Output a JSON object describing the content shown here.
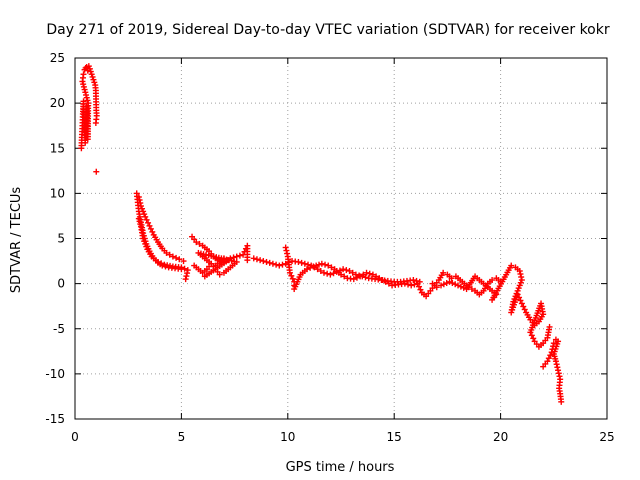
{
  "colors": {
    "series": "#ff0000",
    "axis": "#000000",
    "grid": "#a0a0a0"
  },
  "chart_data": {
    "type": "scatter",
    "title": "Day 271 of 2019, Sidereal Day-to-day VTEC variation (SDTVAR) for receiver kokr",
    "xlabel": "GPS time / hours",
    "ylabel": "SDTVAR / TECUs",
    "xlim": [
      0,
      25
    ],
    "ylim": [
      -15,
      25
    ],
    "xticks": [
      0,
      5,
      10,
      15,
      20,
      25
    ],
    "yticks": [
      -15,
      -10,
      -5,
      0,
      5,
      10,
      15,
      20,
      25
    ],
    "grid": true,
    "marker": "plus",
    "series": [
      {
        "name": "SDTVAR",
        "points": [
          [
            0.3,
            15.0
          ],
          [
            0.32,
            16.2
          ],
          [
            0.35,
            17.5
          ],
          [
            0.37,
            18.8
          ],
          [
            0.4,
            20.2
          ],
          [
            0.42,
            19.0
          ],
          [
            0.45,
            17.0
          ],
          [
            0.48,
            15.6
          ],
          [
            0.5,
            16.8
          ],
          [
            0.52,
            18.4
          ],
          [
            0.55,
            19.6
          ],
          [
            0.58,
            17.8
          ],
          [
            0.6,
            16.0
          ],
          [
            0.62,
            20.0
          ],
          [
            0.35,
            22.4
          ],
          [
            0.4,
            23.2
          ],
          [
            0.45,
            23.7
          ],
          [
            0.5,
            23.9
          ],
          [
            0.55,
            24.0
          ],
          [
            0.6,
            23.6
          ],
          [
            0.65,
            24.1
          ],
          [
            0.7,
            23.8
          ],
          [
            0.95,
            22.0
          ],
          [
            0.98,
            21.4
          ],
          [
            1.0,
            19.2
          ],
          [
            1.02,
            18.6
          ],
          [
            0.98,
            17.8
          ],
          [
            1.0,
            12.4
          ],
          [
            2.9,
            10.0
          ],
          [
            2.95,
            9.0
          ],
          [
            3.0,
            8.0
          ],
          [
            3.1,
            6.8
          ],
          [
            3.2,
            5.6
          ],
          [
            3.35,
            4.4
          ],
          [
            3.5,
            3.6
          ],
          [
            3.7,
            2.8
          ],
          [
            3.9,
            2.3
          ],
          [
            4.1,
            2.0
          ],
          [
            4.4,
            1.8
          ],
          [
            4.7,
            1.7
          ],
          [
            5.0,
            1.6
          ],
          [
            3.0,
            9.6
          ],
          [
            3.1,
            8.6
          ],
          [
            3.3,
            7.4
          ],
          [
            3.5,
            6.4
          ],
          [
            3.7,
            5.4
          ],
          [
            3.9,
            4.6
          ],
          [
            4.1,
            3.9
          ],
          [
            4.3,
            3.4
          ],
          [
            4.6,
            3.0
          ],
          [
            4.9,
            2.7
          ],
          [
            5.1,
            2.5
          ],
          [
            3.0,
            7.2
          ],
          [
            3.1,
            6.3
          ],
          [
            3.2,
            5.0
          ],
          [
            3.4,
            3.8
          ],
          [
            3.6,
            3.0
          ],
          [
            3.9,
            2.4
          ],
          [
            4.2,
            2.1
          ],
          [
            4.6,
            1.9
          ],
          [
            5.0,
            1.8
          ],
          [
            5.3,
            1.5
          ],
          [
            5.2,
            0.5
          ],
          [
            5.5,
            5.2
          ],
          [
            5.7,
            4.6
          ],
          [
            6.0,
            4.2
          ],
          [
            6.3,
            3.6
          ],
          [
            6.5,
            3.0
          ],
          [
            6.7,
            2.6
          ],
          [
            7.0,
            2.4
          ],
          [
            7.3,
            2.8
          ],
          [
            7.6,
            3.0
          ],
          [
            7.9,
            3.2
          ],
          [
            8.1,
            4.2
          ],
          [
            8.1,
            2.6
          ],
          [
            5.6,
            2.0
          ],
          [
            5.8,
            1.6
          ],
          [
            6.0,
            1.2
          ],
          [
            6.2,
            1.6
          ],
          [
            6.4,
            2.2
          ],
          [
            6.6,
            1.6
          ],
          [
            6.8,
            1.0
          ],
          [
            7.0,
            1.2
          ],
          [
            7.3,
            1.8
          ],
          [
            7.6,
            2.4
          ],
          [
            5.8,
            3.4
          ],
          [
            6.0,
            3.0
          ],
          [
            6.2,
            2.6
          ],
          [
            6.4,
            2.2
          ],
          [
            6.6,
            2.0
          ],
          [
            6.8,
            2.4
          ],
          [
            7.0,
            2.8
          ],
          [
            7.2,
            2.6
          ],
          [
            6.1,
            0.8
          ],
          [
            8.4,
            2.8
          ],
          [
            8.7,
            2.6
          ],
          [
            9.0,
            2.4
          ],
          [
            9.3,
            2.2
          ],
          [
            9.6,
            2.0
          ],
          [
            9.9,
            2.2
          ],
          [
            10.2,
            2.5
          ],
          [
            10.5,
            2.4
          ],
          [
            10.8,
            2.2
          ],
          [
            11.1,
            2.0
          ],
          [
            11.4,
            1.6
          ],
          [
            11.7,
            1.2
          ],
          [
            12.0,
            1.0
          ],
          [
            12.3,
            1.3
          ],
          [
            12.6,
            1.6
          ],
          [
            12.9,
            1.4
          ],
          [
            13.2,
            1.0
          ],
          [
            13.5,
            0.8
          ],
          [
            13.8,
            0.6
          ],
          [
            14.1,
            0.5
          ],
          [
            14.4,
            0.4
          ],
          [
            14.7,
            0.3
          ],
          [
            15.0,
            0.2
          ],
          [
            15.3,
            0.2
          ],
          [
            15.6,
            0.3
          ],
          [
            15.9,
            0.4
          ],
          [
            16.2,
            0.2
          ],
          [
            9.9,
            4.0
          ],
          [
            10.0,
            3.0
          ],
          [
            10.1,
            1.2
          ],
          [
            10.3,
            0.2
          ],
          [
            10.3,
            -0.6
          ],
          [
            10.6,
            1.0
          ],
          [
            10.9,
            1.6
          ],
          [
            11.2,
            1.9
          ],
          [
            11.6,
            2.2
          ],
          [
            11.9,
            2.0
          ],
          [
            12.2,
            1.6
          ],
          [
            12.5,
            1.0
          ],
          [
            12.8,
            0.6
          ],
          [
            13.1,
            0.5
          ],
          [
            13.4,
            0.8
          ],
          [
            13.7,
            1.2
          ],
          [
            14.0,
            1.0
          ],
          [
            14.3,
            0.6
          ],
          [
            14.6,
            0.2
          ],
          [
            14.9,
            -0.2
          ],
          [
            15.2,
            -0.1
          ],
          [
            15.5,
            0.0
          ],
          [
            15.8,
            -0.2
          ],
          [
            16.1,
            0.0
          ],
          [
            16.3,
            -1.0
          ],
          [
            16.5,
            -1.4
          ],
          [
            16.7,
            -0.8
          ],
          [
            16.9,
            -0.2
          ],
          [
            17.1,
            0.4
          ],
          [
            17.3,
            1.2
          ],
          [
            17.5,
            1.0
          ],
          [
            17.7,
            0.6
          ],
          [
            17.9,
            0.8
          ],
          [
            18.1,
            0.4
          ],
          [
            18.3,
            0.0
          ],
          [
            18.5,
            -0.4
          ],
          [
            18.8,
            -0.8
          ],
          [
            19.0,
            -1.2
          ],
          [
            19.2,
            -0.8
          ],
          [
            19.4,
            0.0
          ],
          [
            19.6,
            0.4
          ],
          [
            19.8,
            0.6
          ],
          [
            20.0,
            0.2
          ],
          [
            16.8,
            0.0
          ],
          [
            17.0,
            -0.4
          ],
          [
            17.2,
            -0.2
          ],
          [
            17.6,
            0.2
          ],
          [
            18.0,
            -0.2
          ],
          [
            18.4,
            -0.6
          ],
          [
            18.8,
            0.8
          ],
          [
            19.1,
            0.2
          ],
          [
            19.5,
            -0.6
          ],
          [
            19.8,
            -1.2
          ],
          [
            19.6,
            -1.8
          ],
          [
            20.5,
            2.0
          ],
          [
            20.7,
            1.8
          ],
          [
            20.9,
            1.4
          ],
          [
            21.0,
            0.4
          ],
          [
            20.8,
            -0.8
          ],
          [
            20.6,
            -2.0
          ],
          [
            20.5,
            -3.2
          ],
          [
            20.8,
            -1.2
          ],
          [
            21.0,
            -2.2
          ],
          [
            21.2,
            -3.2
          ],
          [
            21.4,
            -4.0
          ],
          [
            21.6,
            -4.6
          ],
          [
            21.8,
            -4.2
          ],
          [
            22.0,
            -3.4
          ],
          [
            21.9,
            -2.2
          ],
          [
            21.4,
            -5.4
          ],
          [
            21.6,
            -6.4
          ],
          [
            21.8,
            -7.0
          ],
          [
            22.0,
            -6.6
          ],
          [
            22.2,
            -6.0
          ],
          [
            22.3,
            -4.8
          ],
          [
            22.0,
            -9.2
          ],
          [
            22.2,
            -8.6
          ],
          [
            22.4,
            -7.6
          ],
          [
            22.5,
            -6.6
          ],
          [
            22.6,
            -6.2
          ],
          [
            22.7,
            -6.4
          ],
          [
            22.5,
            -7.8
          ],
          [
            22.6,
            -8.6
          ],
          [
            22.7,
            -9.6
          ],
          [
            22.8,
            -10.6
          ],
          [
            22.75,
            -11.6
          ],
          [
            22.8,
            -12.2
          ],
          [
            22.85,
            -13.1
          ]
        ]
      }
    ]
  }
}
